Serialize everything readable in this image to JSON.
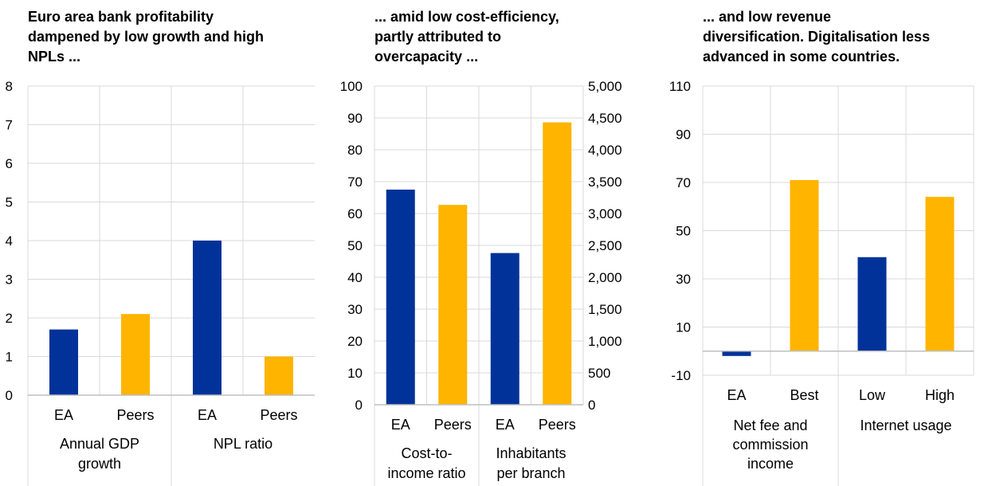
{
  "colors": {
    "ea": "#003299",
    "peers": "#FFB400",
    "grid": "#d9d9d9"
  },
  "chart_data": [
    {
      "type": "bar",
      "title": [
        "Euro area bank profitability",
        "dampened by low growth and high",
        "NPLs ..."
      ],
      "ylim": [
        0,
        8
      ],
      "y_ticks": [
        "0",
        "1",
        "2",
        "3",
        "4",
        "5",
        "6",
        "7",
        "8"
      ],
      "groups": [
        {
          "label": [
            "Annual GDP",
            "growth"
          ],
          "categories": [
            "EA",
            "Peers"
          ],
          "values": [
            1.7,
            2.1
          ]
        },
        {
          "label": [
            "NPL ratio"
          ],
          "categories": [
            "EA",
            "Peers"
          ],
          "values": [
            4.0,
            1.0
          ]
        }
      ]
    },
    {
      "type": "bar",
      "title": [
        "... amid low cost-efficiency,",
        "partly attributed to",
        "overcapacity ..."
      ],
      "ylim": [
        0,
        100
      ],
      "y_ticks": [
        "0",
        "10",
        "20",
        "30",
        "40",
        "50",
        "60",
        "70",
        "80",
        "90",
        "100"
      ],
      "y2lim": [
        0,
        5000
      ],
      "y2_ticks": [
        "0",
        "500",
        "1,000",
        "1,500",
        "2,000",
        "2,500",
        "3,000",
        "3,500",
        "4,000",
        "4,500",
        "5,000"
      ],
      "groups": [
        {
          "label": [
            "Cost-to-",
            "income ratio"
          ],
          "categories": [
            "EA",
            "Peers"
          ],
          "values": [
            67.5,
            62.7
          ],
          "axis": "left"
        },
        {
          "label": [
            "Inhabitants",
            "per branch"
          ],
          "categories": [
            "EA",
            "Peers"
          ],
          "values": [
            2380,
            4430
          ],
          "axis": "right"
        }
      ]
    },
    {
      "type": "bar",
      "title": [
        "... and low revenue",
        "diversification. Digitalisation less",
        "advanced in some countries."
      ],
      "ylim": [
        -10,
        110
      ],
      "y_ticks": [
        "-10",
        "10",
        "30",
        "50",
        "70",
        "90",
        "110"
      ],
      "groups": [
        {
          "label": [
            "Net fee and",
            "commission",
            "income"
          ],
          "categories": [
            "EA",
            "Best"
          ],
          "values": [
            -2,
            71
          ]
        },
        {
          "label": [
            "Internet usage"
          ],
          "categories": [
            "Low",
            "High"
          ],
          "values": [
            39,
            64
          ]
        }
      ]
    }
  ]
}
